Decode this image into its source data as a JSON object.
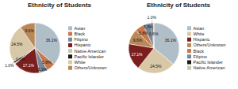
{
  "chart_data": [
    {
      "type": "pie",
      "title": "Ethnicity of Students",
      "categories": [
        "Asian",
        "Black",
        "Filipino",
        "Hispanic",
        "Native American",
        "Pacific Islander",
        "White",
        "Others/Unknown"
      ],
      "values": [
        36.1,
        5.8,
        5.3,
        17.1,
        0.6,
        1.0,
        24.5,
        9.6
      ],
      "value_labels": [
        "36.1%",
        "5.8%",
        "5.3%",
        "17.1%",
        "0.6%",
        "1.0%",
        "24.5%",
        "9.6%"
      ],
      "colors": [
        "#b0bec8",
        "#c8784a",
        "#788898",
        "#7a1e1e",
        "#c8c8b0",
        "#181818",
        "#d8c8a8",
        "#b88858"
      ],
      "data_labels": true,
      "legend": "right"
    },
    {
      "type": "pie",
      "title": "Ethnicity of Students",
      "categories": [
        "Asian",
        "White",
        "Hispanic",
        "Others/Unknown",
        "Black",
        "Filipino",
        "Pacific Islander",
        "Native American"
      ],
      "values": [
        36.1,
        24.5,
        17.1,
        9.6,
        5.8,
        5.3,
        1.0,
        0.6
      ],
      "value_labels": [
        "36.1%",
        "24.5%",
        "17.1%",
        "9.6%",
        "5.8%",
        "5.3%",
        "1.0%",
        "0.6%"
      ],
      "colors": [
        "#b0bec8",
        "#d8c8a8",
        "#7a1e1e",
        "#b88858",
        "#c8784a",
        "#788898",
        "#181818",
        "#c8c8b0"
      ],
      "data_labels": true,
      "legend": "right"
    }
  ]
}
